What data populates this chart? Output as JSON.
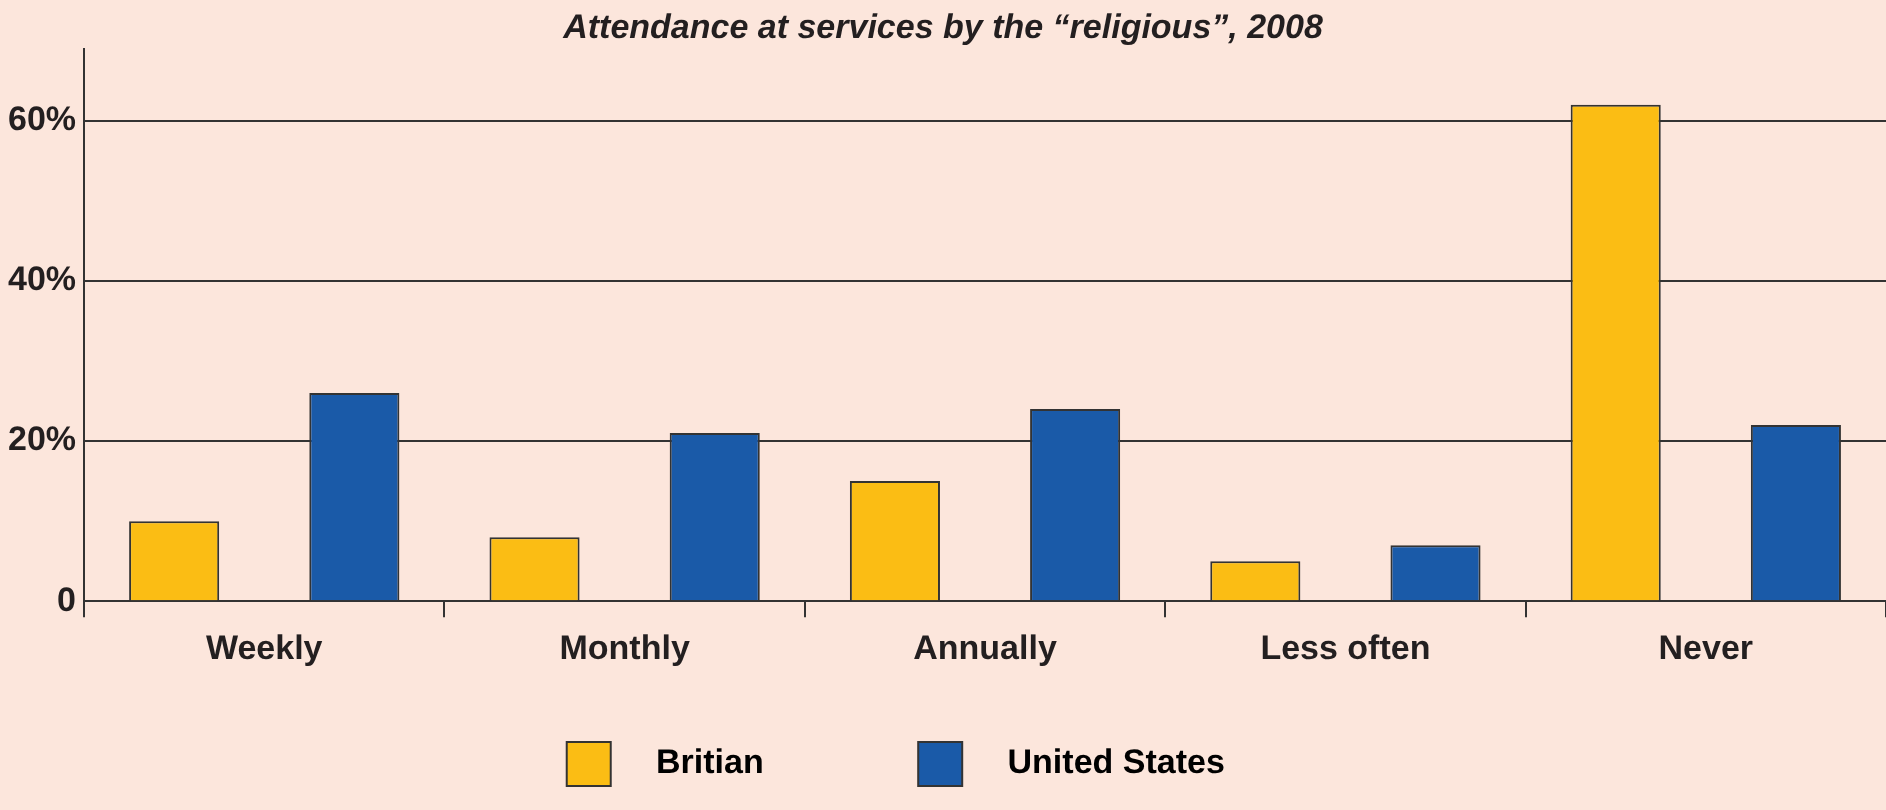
{
  "chart_data": {
    "type": "bar",
    "title": "Attendance at services by the “religious”, 2008",
    "categories": [
      "Weekly",
      "Monthly",
      "Annually",
      "Less often",
      "Never"
    ],
    "series": [
      {
        "name": "Britian",
        "color": "#fbbd14",
        "values": [
          10,
          8,
          15,
          5,
          62
        ]
      },
      {
        "name": "United States",
        "color": "#1a5aa8",
        "values": [
          26,
          21,
          24,
          7,
          22
        ]
      }
    ],
    "ylim": [
      0,
      69
    ],
    "yticks": [
      0,
      {
        "value": 20,
        "label": "20%"
      },
      {
        "value": 40,
        "label": "40%"
      },
      {
        "value": 60,
        "label": "60%"
      }
    ],
    "grid": "y",
    "legend": "bottom"
  }
}
